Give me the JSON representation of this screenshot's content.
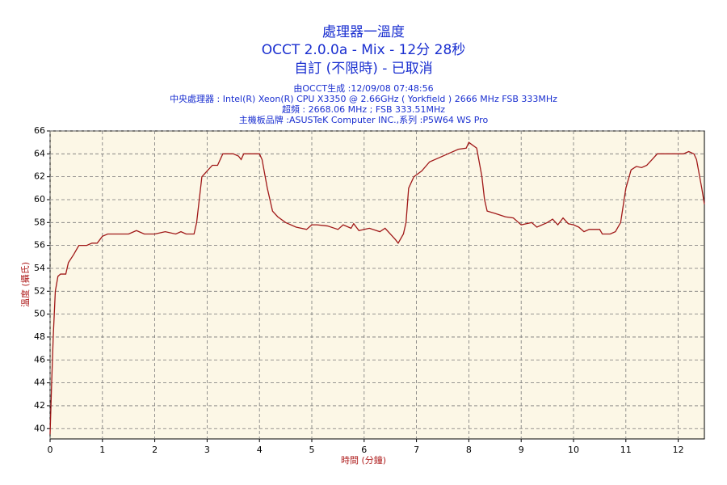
{
  "chart_data": {
    "type": "line",
    "title": "處理器一溫度",
    "subtitle": "OCCT 2.0.0a - Mix - 12分 28秒",
    "subtitle2": "自訂 (不限時) - 已取消",
    "info": [
      "由OCCT生成 :12/09/08 07:48:56",
      "中央處理器 : Intel(R) Xeon(R) CPU X3350 @ 2.66GHz ( Yorkfield ) 2666 MHz FSB 333MHz",
      "超頻 : 2668.06 MHz ; FSB 333.51MHz",
      "主機板品牌 :ASUSTeK Computer INC.,系列 :P5W64 WS Pro"
    ],
    "x_label": "時間 (分鐘)",
    "y_label": "溫度 (攝氏)",
    "color": "#a01818",
    "grid": true,
    "xlim": [
      0,
      12.5
    ],
    "ylim": [
      39.1,
      66
    ],
    "xticks": [
      0,
      1,
      2,
      3,
      4,
      5,
      6,
      7,
      8,
      9,
      10,
      11,
      12
    ],
    "yticks": [
      40,
      42,
      44,
      46,
      48,
      50,
      52,
      54,
      56,
      58,
      60,
      62,
      64,
      66
    ],
    "x": [
      0,
      0.03,
      0.06,
      0.1,
      0.15,
      0.2,
      0.3,
      0.35,
      0.45,
      0.55,
      0.7,
      0.8,
      0.9,
      1.0,
      1.1,
      1.5,
      1.65,
      1.8,
      2.0,
      2.2,
      2.4,
      2.5,
      2.6,
      2.75,
      2.8,
      2.9,
      3.0,
      3.1,
      3.2,
      3.3,
      3.5,
      3.6,
      3.65,
      3.7,
      4.0,
      4.05,
      4.15,
      4.25,
      4.35,
      4.5,
      4.7,
      4.9,
      5.0,
      5.1,
      5.3,
      5.5,
      5.6,
      5.75,
      5.8,
      5.9,
      6.1,
      6.3,
      6.4,
      6.5,
      6.6,
      6.65,
      6.75,
      6.8,
      6.85,
      6.95,
      7.1,
      7.25,
      7.5,
      7.6,
      7.8,
      7.95,
      8.0,
      8.15,
      8.25,
      8.3,
      8.35,
      8.5,
      8.7,
      8.85,
      8.95,
      9.0,
      9.1,
      9.2,
      9.3,
      9.5,
      9.6,
      9.7,
      9.8,
      9.9,
      10.0,
      10.1,
      10.2,
      10.3,
      10.5,
      10.55,
      10.7,
      10.8,
      10.9,
      11.0,
      11.1,
      11.2,
      11.3,
      11.4,
      11.5,
      11.6,
      11.9,
      12.1,
      12.2,
      12.3,
      12.35,
      12.45,
      12.5
    ],
    "values": [
      39.5,
      44,
      48,
      52,
      53.3,
      53.5,
      53.5,
      54.5,
      55.2,
      56,
      56,
      56.2,
      56.2,
      56.8,
      57,
      57,
      57.3,
      57,
      57,
      57.2,
      57,
      57.2,
      57,
      57,
      58,
      62,
      62.5,
      63,
      63,
      64,
      64,
      63.8,
      63.5,
      64,
      64,
      63.5,
      61,
      59,
      58.5,
      58,
      57.6,
      57.4,
      57.8,
      57.8,
      57.7,
      57.4,
      57.8,
      57.5,
      57.9,
      57.3,
      57.5,
      57.2,
      57.5,
      57,
      56.5,
      56.2,
      57,
      58,
      61,
      62,
      62.5,
      63.3,
      63.8,
      64,
      64.4,
      64.5,
      65,
      64.5,
      62,
      60,
      59,
      58.8,
      58.5,
      58.4,
      58,
      57.8,
      57.9,
      58,
      57.6,
      58,
      58.3,
      57.8,
      58.4,
      57.9,
      57.8,
      57.6,
      57.2,
      57.4,
      57.4,
      57,
      57,
      57.2,
      58,
      61,
      62.6,
      62.9,
      62.8,
      63,
      63.5,
      64,
      64,
      64,
      64.2,
      64,
      63.5,
      61,
      59.6
    ]
  }
}
